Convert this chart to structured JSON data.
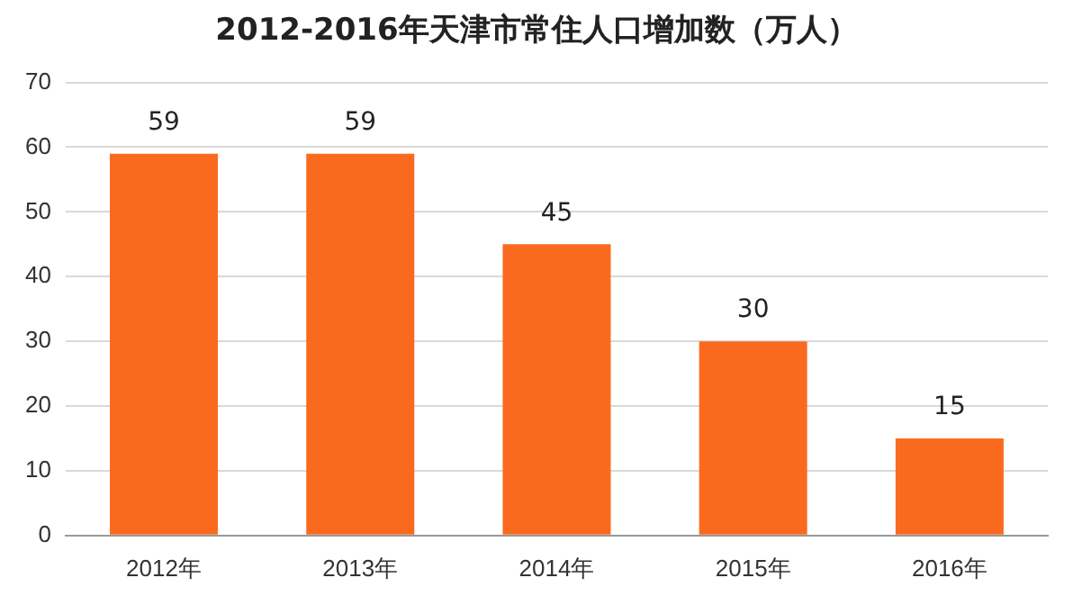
{
  "chart_data": {
    "type": "bar",
    "title": "2012-2016年天津市常住人口增加数（万人）",
    "categories": [
      "2012年",
      "2013年",
      "2014年",
      "2015年",
      "2016年"
    ],
    "values": [
      59,
      59,
      45,
      30,
      15
    ],
    "color": "#fa6a1e",
    "ylim": [
      0,
      70
    ],
    "yticks": [
      0,
      10,
      20,
      30,
      40,
      50,
      60,
      70
    ],
    "grid": "y",
    "data_labels": true,
    "legend": false
  }
}
